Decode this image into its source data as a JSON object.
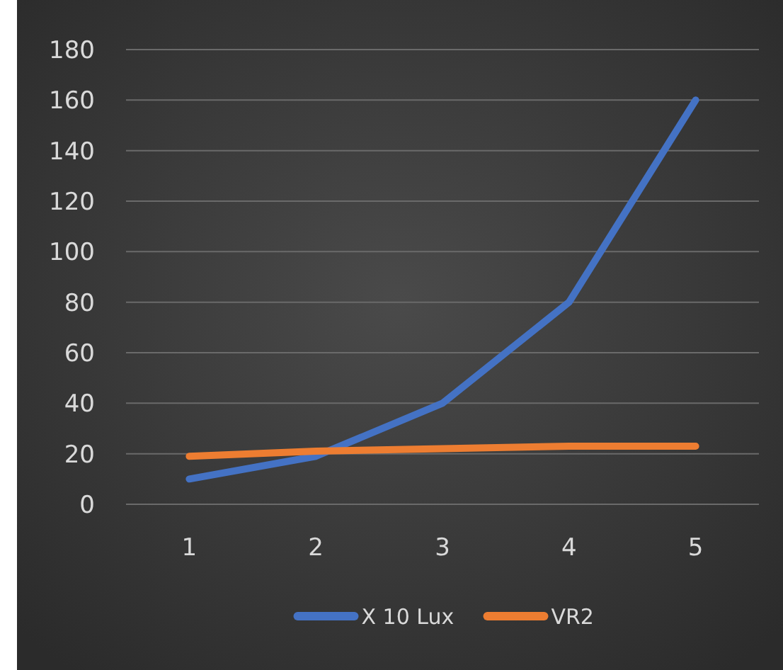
{
  "chart_data": {
    "type": "line",
    "categories": [
      "1",
      "2",
      "3",
      "4",
      "5"
    ],
    "series": [
      {
        "name": "X 10 Lux",
        "color": "#4472c4",
        "values": [
          10,
          19,
          40,
          80,
          160
        ]
      },
      {
        "name": "VR2",
        "color": "#ed7d31",
        "values": [
          19,
          21,
          22,
          23,
          23
        ]
      }
    ],
    "ylim": [
      0,
      180
    ],
    "yticks": [
      0,
      20,
      40,
      60,
      80,
      100,
      120,
      140,
      160,
      180
    ],
    "grid": "y",
    "legend": "bottom",
    "marker": "none",
    "line_style": "solid"
  }
}
